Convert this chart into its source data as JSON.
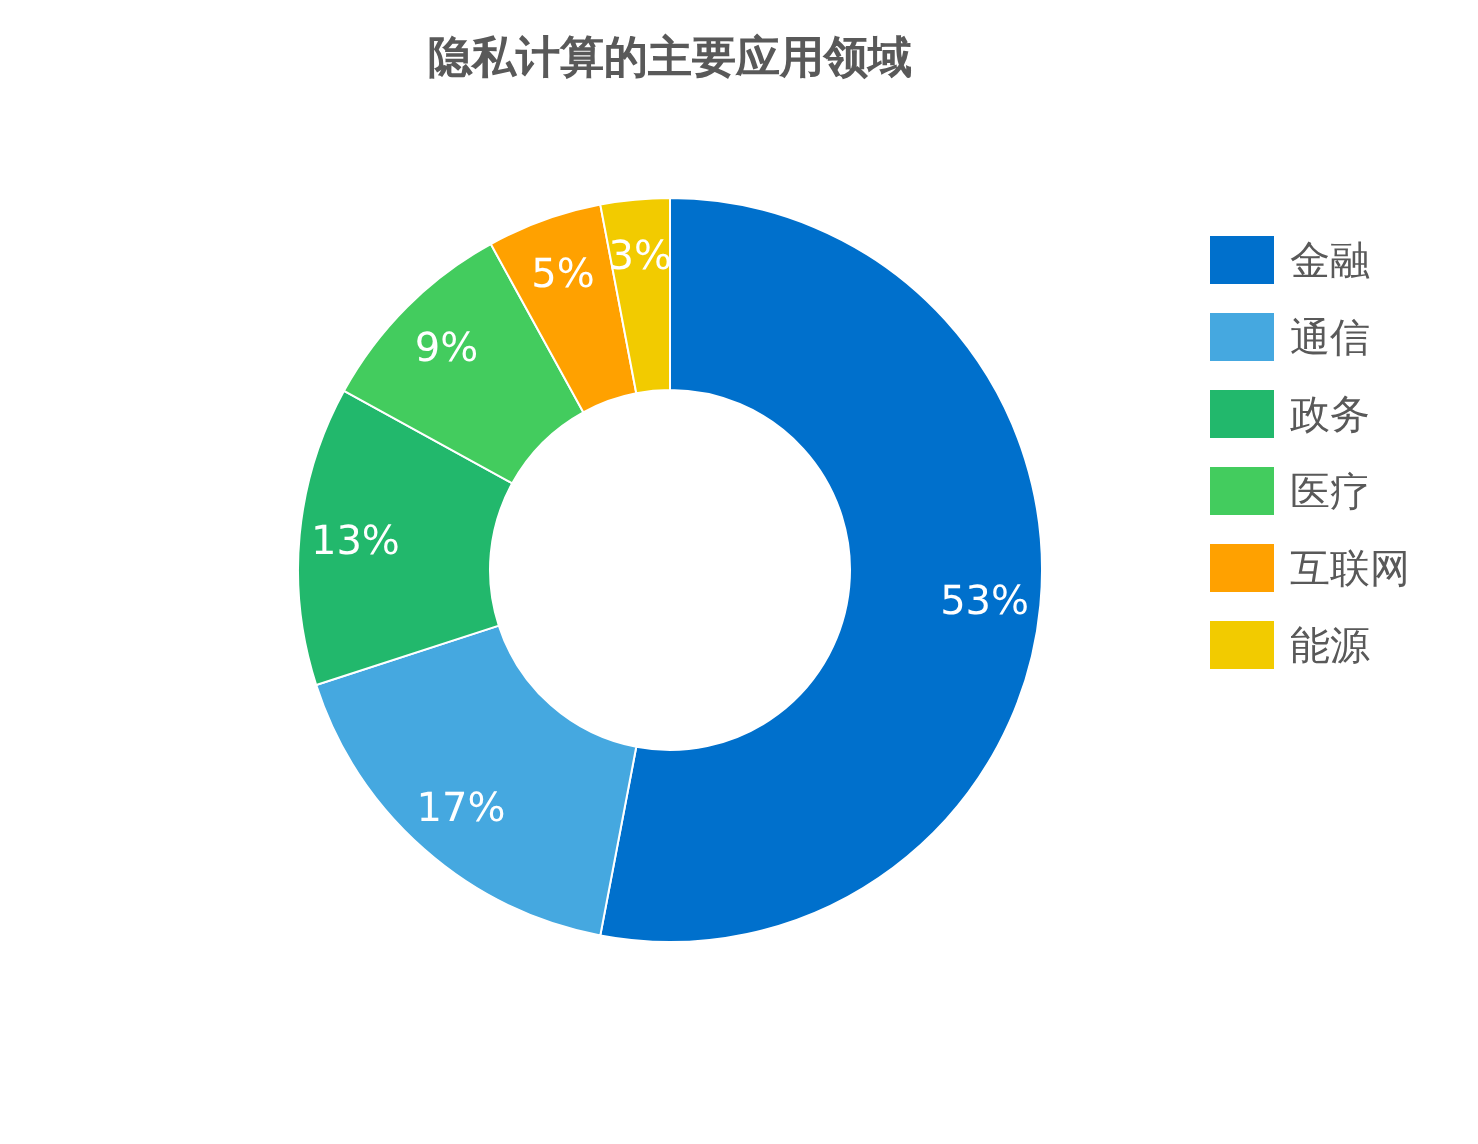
{
  "chart_data": {
    "type": "donut",
    "title": "隐私计算的主要应用领域",
    "categories": [
      "金融",
      "通信",
      "政务",
      "医疗",
      "互联网",
      "能源"
    ],
    "values": [
      53,
      17,
      13,
      9,
      5,
      3
    ],
    "colors": [
      "#0070cc",
      "#45a8e0",
      "#22b86c",
      "#43cc5e",
      "#ffa100",
      "#f2cb00"
    ],
    "value_labels": [
      "53%",
      "17%",
      "13%",
      "9%",
      "5%",
      "3%"
    ],
    "legend": "right"
  }
}
